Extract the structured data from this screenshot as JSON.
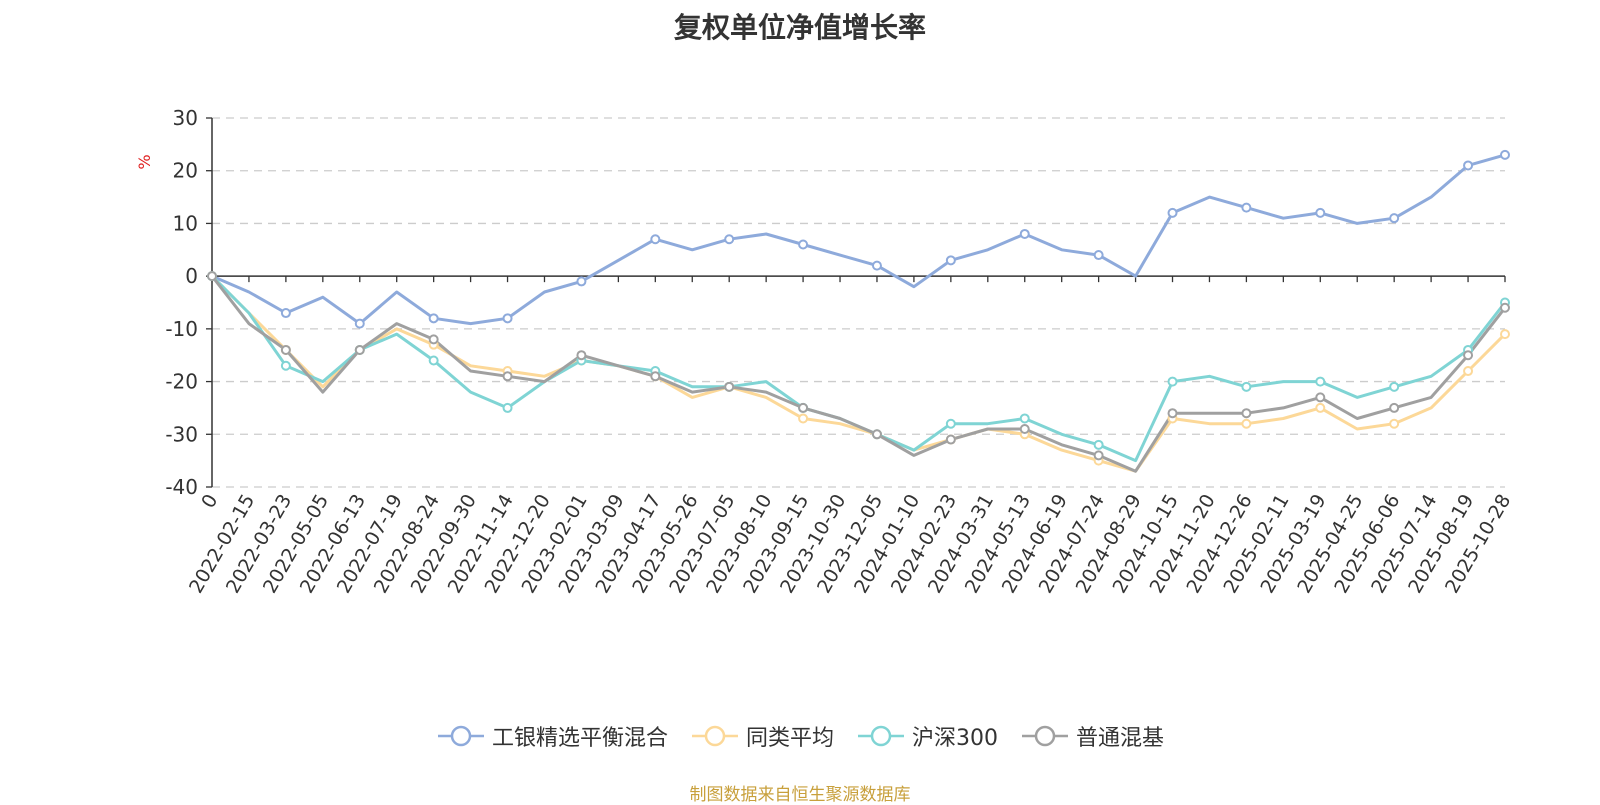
{
  "title": "复权单位净值增长率",
  "source_note": "制图数据来自恒生聚源数据库",
  "chart_data": {
    "type": "line",
    "title": "复权单位净值增长率",
    "ylabel": "%",
    "xlabel": "",
    "ylim": [
      -40,
      30
    ],
    "yticks": [
      30,
      20,
      10,
      0,
      -10,
      -20,
      -30,
      -40
    ],
    "grid": true,
    "legend_position": "bottom",
    "categories": [
      "0",
      "2022-02-15",
      "2022-03-23",
      "2022-05-05",
      "2022-06-13",
      "2022-07-19",
      "2022-08-24",
      "2022-09-30",
      "2022-11-14",
      "2022-12-20",
      "2023-02-01",
      "2023-03-09",
      "2023-04-17",
      "2023-05-26",
      "2023-07-05",
      "2023-08-10",
      "2023-09-15",
      "2023-10-30",
      "2023-12-05",
      "2024-01-10",
      "2024-02-23",
      "2024-03-31",
      "2024-05-13",
      "2024-06-19",
      "2024-07-24",
      "2024-08-29",
      "2024-10-15",
      "2024-11-20",
      "2024-12-26",
      "2025-02-11",
      "2025-03-19",
      "2025-04-25",
      "2025-06-06",
      "2025-07-14",
      "2025-08-19",
      "2025-10-28"
    ],
    "series": [
      {
        "name": "工银精选平衡混合",
        "color": "#8eaadb",
        "values": [
          0,
          -3,
          -7,
          -4,
          -9,
          -3,
          -8,
          -9,
          -8,
          -3,
          -1,
          3,
          7,
          5,
          7,
          8,
          6,
          4,
          2,
          -2,
          3,
          5,
          8,
          5,
          4,
          0,
          12,
          15,
          13,
          11,
          12,
          10,
          11,
          15,
          21,
          23
        ]
      },
      {
        "name": "同类平均",
        "color": "#fcd898",
        "values": [
          0,
          -7,
          -14,
          -21,
          -14,
          -10,
          -13,
          -17,
          -18,
          -19,
          -16,
          -17,
          -19,
          -23,
          -21,
          -23,
          -27,
          -28,
          -30,
          -33,
          -31,
          -29,
          -30,
          -33,
          -35,
          -37,
          -27,
          -28,
          -28,
          -27,
          -25,
          -29,
          -28,
          -25,
          -18,
          -11
        ]
      },
      {
        "name": "沪深300",
        "color": "#7fd4d4",
        "values": [
          0,
          -7,
          -17,
          -20,
          -14,
          -11,
          -16,
          -22,
          -25,
          -20,
          -16,
          -17,
          -18,
          -21,
          -21,
          -20,
          -25,
          -27,
          -30,
          -33,
          -28,
          -28,
          -27,
          -30,
          -32,
          -35,
          -20,
          -19,
          -21,
          -20,
          -20,
          -23,
          -21,
          -19,
          -14,
          -5
        ]
      },
      {
        "name": "普通混基",
        "color": "#a0a0a0",
        "values": [
          0,
          -9,
          -14,
          -22,
          -14,
          -9,
          -12,
          -18,
          -19,
          -20,
          -15,
          -17,
          -19,
          -22,
          -21,
          -22,
          -25,
          -27,
          -30,
          -34,
          -31,
          -29,
          -29,
          -32,
          -34,
          -37,
          -26,
          -26,
          -26,
          -25,
          -23,
          -27,
          -25,
          -23,
          -15,
          -6
        ]
      }
    ]
  }
}
